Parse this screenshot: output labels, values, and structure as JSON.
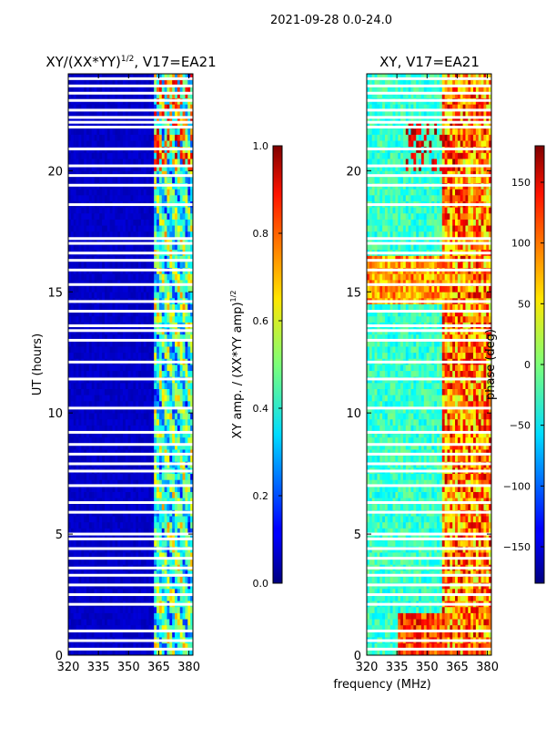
{
  "figure": {
    "suptitle": "2021-09-28 0.0-24.0",
    "shared_xlabel": "frequency (MHz)"
  },
  "chart_data": [
    {
      "type": "heatmap",
      "id": "amp",
      "title": "XY/(XX*YY)",
      "title_sup": "1/2",
      "title_suffix": ", V17=EA21",
      "xlabel": "frequency (MHz)",
      "ylabel": "UT (hours)",
      "xlim": [
        320,
        382
      ],
      "ylim": [
        0,
        24
      ],
      "xticks": [
        320,
        335,
        350,
        365,
        380
      ],
      "yticks": [
        0,
        5,
        10,
        15,
        20
      ],
      "colormap": "jet",
      "colorbar": {
        "label": "XY amp. / (XX*YY amp)",
        "label_sup": "1/2",
        "range": [
          0.0,
          1.0
        ],
        "ticks": [
          "0.0",
          "0.2",
          "0.4",
          "0.6",
          "0.8",
          "1.0"
        ],
        "tick_values": [
          0.0,
          0.2,
          0.4,
          0.6,
          0.8,
          1.0
        ]
      }
    },
    {
      "type": "heatmap",
      "id": "phase",
      "title": "XY, V17=EA21",
      "xlabel": "frequency (MHz)",
      "xlim": [
        320,
        382
      ],
      "ylim": [
        0,
        24
      ],
      "xticks": [
        320,
        335,
        350,
        365,
        380
      ],
      "yticks": [
        0,
        5,
        10,
        15,
        20
      ],
      "colormap": "jet",
      "colorbar": {
        "label": "phase (deg)",
        "range": [
          -180,
          180
        ],
        "ticks": [
          "150",
          "100",
          "50",
          "0",
          "−50",
          "−100",
          "−150"
        ],
        "tick_values": [
          150,
          100,
          50,
          0,
          -50,
          -100,
          -150
        ]
      }
    }
  ],
  "flagged_ut_hours": [
    0.25,
    0.6,
    1.0,
    2.1,
    2.5,
    2.9,
    3.3,
    3.6,
    4.0,
    4.4,
    4.8,
    5.0,
    5.9,
    6.3,
    7.0,
    7.6,
    7.9,
    8.3,
    8.7,
    9.2,
    10.2,
    11.4,
    12.1,
    13.0,
    13.4,
    13.6,
    14.2,
    14.6,
    15.3,
    15.9,
    16.3,
    16.6,
    17.0,
    17.2,
    18.6,
    19.4,
    19.8,
    20.2,
    20.9,
    21.8,
    22.0,
    22.2,
    22.5,
    22.9,
    23.2,
    23.5,
    23.8
  ]
}
